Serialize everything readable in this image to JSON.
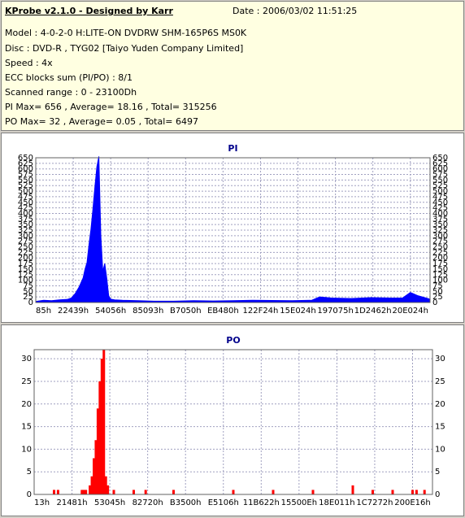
{
  "info": {
    "title": "KProbe v2.1.0 - Designed by Karr",
    "date": "Date : 2006/03/02 11:51:25",
    "lines": [
      "Model : 4-0-2-0 H:LITE-ON DVDRW SHM-165P6S MS0K",
      "Disc : DVD-R , TYG02 [Taiyo Yuden Company Limited]",
      "Speed : 4x",
      "ECC blocks sum (PI/PO) : 8/1",
      "Scanned range : 0 - 23100Dh",
      "PI Max= 656 , Average= 18.16 , Total= 315256",
      "PO Max= 32 , Average= 0.05 , Total= 6497"
    ]
  },
  "chart_data": [
    {
      "type": "area",
      "title": "PI",
      "color": "#0000ff",
      "ylim": [
        0,
        650
      ],
      "yticks": [
        0,
        25,
        50,
        75,
        100,
        125,
        150,
        175,
        200,
        225,
        250,
        275,
        300,
        325,
        350,
        375,
        400,
        425,
        450,
        475,
        500,
        525,
        550,
        575,
        600,
        625,
        650
      ],
      "xlabels": [
        "85h",
        "22439h",
        "54056h",
        "85093h",
        "B7050h",
        "EB480h",
        "122F24h",
        "15E024h",
        "197075h",
        "1D2462h",
        "20E024h"
      ],
      "grid": true,
      "x": [
        0,
        0.02,
        0.04,
        0.06,
        0.08,
        0.09,
        0.1,
        0.11,
        0.12,
        0.125,
        0.13,
        0.135,
        0.14,
        0.145,
        0.15,
        0.155,
        0.16,
        0.165,
        0.17,
        0.175,
        0.18,
        0.185,
        0.19,
        0.2,
        0.22,
        0.26,
        0.3,
        0.35,
        0.4,
        0.45,
        0.5,
        0.55,
        0.6,
        0.65,
        0.7,
        0.72,
        0.75,
        0.8,
        0.85,
        0.9,
        0.93,
        0.95,
        0.97,
        1
      ],
      "y": [
        5,
        10,
        8,
        12,
        14,
        20,
        40,
        70,
        110,
        150,
        180,
        260,
        330,
        420,
        520,
        610,
        656,
        300,
        140,
        175,
        110,
        30,
        15,
        12,
        10,
        8,
        6,
        6,
        8,
        7,
        8,
        10,
        9,
        8,
        10,
        25,
        20,
        18,
        22,
        20,
        20,
        45,
        30,
        15
      ]
    },
    {
      "type": "bar",
      "title": "PO",
      "color": "#ff0000",
      "ylim": [
        0,
        32
      ],
      "yticks": [
        0,
        5,
        10,
        15,
        20,
        25,
        30
      ],
      "xlabels": [
        "13h",
        "21481h",
        "53045h",
        "82720h",
        "B3500h",
        "E5106h",
        "11B622h",
        "15500Eh",
        "18E011h",
        "1C7272h",
        "200E16h"
      ],
      "grid": true,
      "x": [
        0.05,
        0.06,
        0.12,
        0.125,
        0.13,
        0.14,
        0.145,
        0.15,
        0.155,
        0.16,
        0.165,
        0.17,
        0.175,
        0.18,
        0.185,
        0.2,
        0.25,
        0.28,
        0.35,
        0.5,
        0.6,
        0.7,
        0.8,
        0.85,
        0.9,
        0.95,
        0.96,
        0.98
      ],
      "y": [
        1,
        1,
        1,
        1,
        1,
        2,
        4,
        8,
        12,
        19,
        25,
        30,
        32,
        4,
        2,
        1,
        1,
        1,
        1,
        1,
        1,
        1,
        2,
        1,
        1,
        1,
        1,
        1
      ]
    }
  ]
}
